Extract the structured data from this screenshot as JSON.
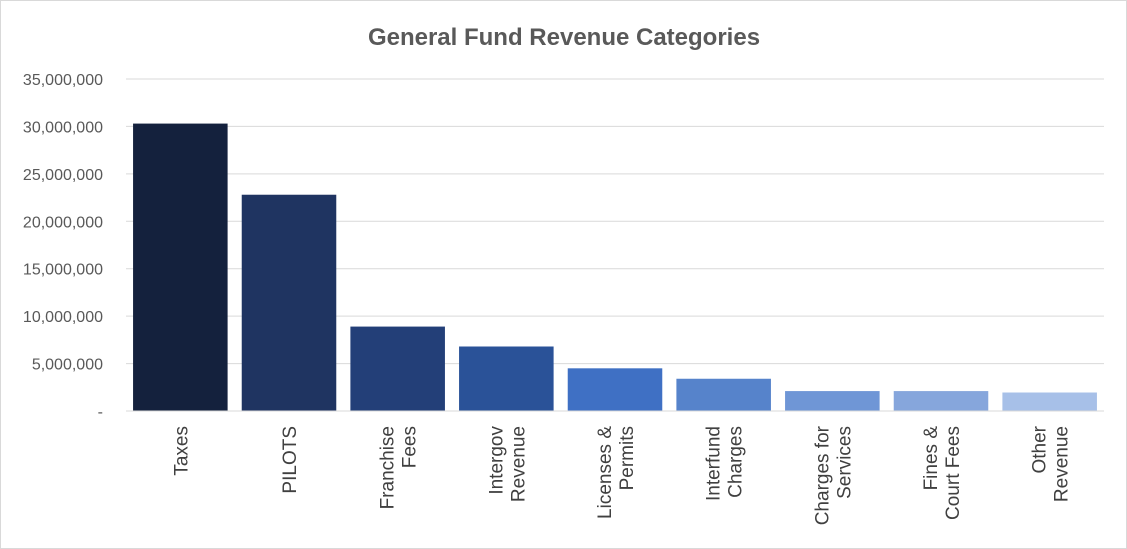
{
  "chart_data": {
    "type": "bar",
    "title": "General Fund Revenue Categories",
    "xlabel": "",
    "ylabel": "",
    "ylim": [
      0,
      35000000
    ],
    "grid": true,
    "legend": "none",
    "y_ticks": [
      {
        "value": 0,
        "label": "-"
      },
      {
        "value": 5000000,
        "label": "5,000,000"
      },
      {
        "value": 10000000,
        "label": "10,000,000"
      },
      {
        "value": 15000000,
        "label": "15,000,000"
      },
      {
        "value": 20000000,
        "label": "20,000,000"
      },
      {
        "value": 25000000,
        "label": "25,000,000"
      },
      {
        "value": 30000000,
        "label": "30,000,000"
      },
      {
        "value": 35000000,
        "label": "35,000,000"
      }
    ],
    "categories": [
      [
        "Taxes"
      ],
      [
        "PILOTS"
      ],
      [
        "Franchise",
        "Fees"
      ],
      [
        "Intergov",
        "Revenue"
      ],
      [
        "Licenses &",
        "Permits"
      ],
      [
        "Interfund",
        "Charges"
      ],
      [
        "Charges for",
        "Services"
      ],
      [
        "Fines &",
        "Court Fees"
      ],
      [
        "Other",
        "Revenue"
      ]
    ],
    "values": [
      30300000,
      22800000,
      8900000,
      6800000,
      4500000,
      3400000,
      2100000,
      2100000,
      1950000
    ],
    "colors": [
      "#14213d",
      "#1f3461",
      "#233f78",
      "#2a5298",
      "#3f70c4",
      "#5683cb",
      "#6f96d6",
      "#86a6dc",
      "#a7c0e8"
    ]
  }
}
